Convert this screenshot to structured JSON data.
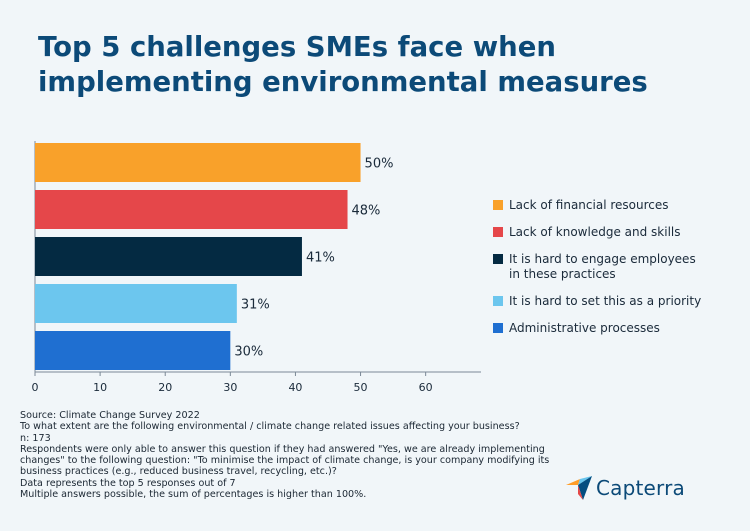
{
  "title_lines": [
    "Top 5 challenges SMEs face when",
    "implementing environmental measures"
  ],
  "chart_data": {
    "type": "bar",
    "orientation": "horizontal",
    "categories": [
      "Lack of financial resources",
      "Lack of knowledge and skills",
      "It is hard to engage employees in these practices",
      "It is hard to set this as a priority",
      "Administrative processes"
    ],
    "values": [
      50,
      48,
      41,
      31,
      30
    ],
    "value_labels": [
      "50%",
      "48%",
      "41%",
      "31%",
      "30%"
    ],
    "colors": [
      "#f9a12a",
      "#e5474a",
      "#042a42",
      "#6cc6ee",
      "#1f6fd1"
    ],
    "xlim": [
      0,
      68.5
    ],
    "xticks": [
      "0",
      "10",
      "20",
      "30",
      "40",
      "50",
      "60"
    ],
    "xtick_values": [
      0,
      10,
      20,
      30,
      40,
      50,
      60
    ],
    "grid": false,
    "legend_position": "right"
  },
  "legend": [
    {
      "label": "Lack of financial resources",
      "color": "#f9a12a"
    },
    {
      "label": "Lack of knowledge and skills",
      "color": "#e5474a"
    },
    {
      "label": "It is hard to engage employees\nin these practices",
      "color": "#042a42"
    },
    {
      "label": "It is hard to set this as a priority",
      "color": "#6cc6ee"
    },
    {
      "label": "Administrative processes",
      "color": "#1f6fd1"
    }
  ],
  "notes": {
    "source": "Source: Climate Change Survey 2022",
    "question": "To what extent are the following environmental / climate change related issues affecting your business?",
    "n": "n: 173",
    "respondents": "Respondents were only able to answer this question if they had answered \"Yes, we are already implementing\nchanges\" to the following question: \"To minimise the impact of climate change, is your company modifying its\nbusiness practices (e.g., reduced business travel, recycling, etc.)?",
    "data_note": "Data represents the top 5 responses out of 7",
    "multiple": "Multiple answers possible, the sum of percentages is higher than 100%."
  },
  "logo": {
    "text": "Capterra",
    "icon": "capterra-arrow-icon"
  }
}
